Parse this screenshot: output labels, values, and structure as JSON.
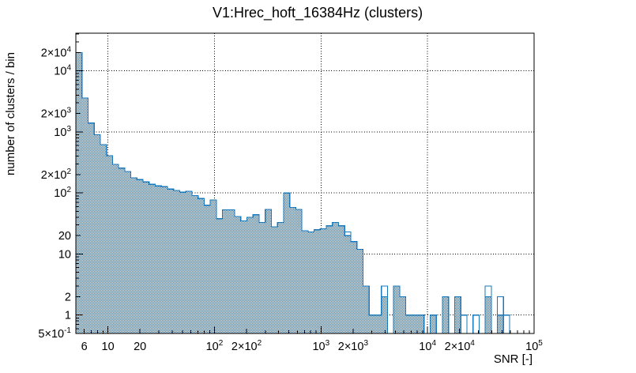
{
  "title": "V1:Hrec_hoft_16384Hz (clusters)",
  "colors": {
    "background": "#ffffff",
    "axis": "#000000",
    "grid": "#000000",
    "title_color": "#000000",
    "hist_line": "#1878ba",
    "hist_fill_pixel": "#3a72a8"
  },
  "chart_data": {
    "type": "bar",
    "subtype": "log-log step histogram",
    "title": "V1:Hrec_hoft_16384Hz (clusters)",
    "xlabel": "SNR [-]",
    "ylabel": "number of clusters / bin",
    "xscale": "log",
    "yscale": "log",
    "xlim": [
      5,
      100000
    ],
    "ylim": [
      0.5,
      44000
    ],
    "grid": true,
    "legend": "none",
    "n_bins": 75,
    "series": [
      {
        "name": "filled_histogram",
        "style": "hatched_fill",
        "values": [
          20000,
          3600,
          1400,
          900,
          620,
          410,
          295,
          255,
          225,
          177,
          166,
          152,
          139,
          131,
          127,
          116,
          110,
          103,
          107,
          91,
          81,
          63,
          77,
          38,
          53,
          53,
          41,
          35,
          40,
          44,
          33,
          54,
          28,
          33,
          100,
          58,
          54,
          24,
          23,
          25,
          26,
          29,
          33,
          29,
          20,
          16,
          12,
          3,
          1,
          1,
          2,
          0,
          3,
          2,
          1,
          1,
          1,
          0,
          1,
          0,
          2,
          0,
          2,
          0,
          0,
          0,
          0,
          2,
          0,
          1,
          0,
          0,
          0,
          0,
          0
        ]
      },
      {
        "name": "outline_histogram",
        "style": "outline_only",
        "values": [
          20000,
          3600,
          1400,
          900,
          620,
          410,
          295,
          255,
          225,
          177,
          166,
          152,
          139,
          131,
          127,
          116,
          110,
          103,
          107,
          91,
          81,
          63,
          77,
          38,
          53,
          53,
          41,
          35,
          40,
          44,
          33,
          54,
          28,
          33,
          100,
          58,
          54,
          24,
          23,
          25,
          26,
          29,
          33,
          29,
          23,
          16,
          12,
          3,
          1,
          1,
          3,
          0,
          3,
          2,
          1,
          1,
          1,
          0,
          1,
          0,
          2,
          0,
          2,
          1,
          0,
          1,
          0,
          3,
          0,
          2,
          1,
          0,
          0,
          0,
          0
        ]
      }
    ],
    "x_ticks": [
      {
        "value": 6,
        "label": "6"
      },
      {
        "value": 10,
        "label": "10"
      },
      {
        "value": 20,
        "label": "20"
      },
      {
        "value": 100,
        "label": "10^2"
      },
      {
        "value": 200,
        "label": "2×10^2"
      },
      {
        "value": 1000,
        "label": "10^3"
      },
      {
        "value": 2000,
        "label": "2×10^3"
      },
      {
        "value": 10000,
        "label": "10^4"
      },
      {
        "value": 20000,
        "label": "2×10^4"
      },
      {
        "value": 100000,
        "label": "10^5"
      }
    ],
    "y_ticks": [
      {
        "value": 20000,
        "label": "2×10^4"
      },
      {
        "value": 10000,
        "label": "10^4"
      },
      {
        "value": 2000,
        "label": "2×10^3"
      },
      {
        "value": 1000,
        "label": "10^3"
      },
      {
        "value": 200,
        "label": "2×10^2"
      },
      {
        "value": 100,
        "label": "10^2"
      },
      {
        "value": 20,
        "label": "20"
      },
      {
        "value": 10,
        "label": "10"
      },
      {
        "value": 2,
        "label": "2"
      },
      {
        "value": 1,
        "label": "1"
      },
      {
        "value": 0.5,
        "label": "5×10^-1"
      }
    ]
  }
}
